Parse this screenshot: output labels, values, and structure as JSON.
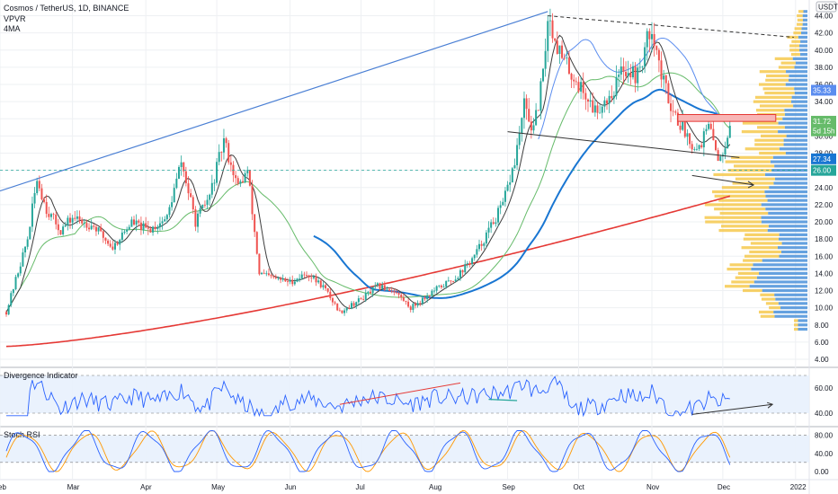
{
  "header": {
    "symbol": "Cosmos / TetherUS, 1D, BINANCE",
    "indicator1": "VPVR",
    "indicator2": "4MA"
  },
  "currency_badge": "USDT",
  "colors": {
    "up": "#26a69a",
    "down": "#ef5350",
    "ma_short": "#3d3d3d",
    "ma_green": "#66bb6a",
    "ma_blue_thin": "#5b8def",
    "ma_blue": "#1976d2",
    "ma_red": "#e53935",
    "trend": "#4a7fd4",
    "vp_up": "#4a90d9",
    "vp_down": "#f5c542",
    "grid": "#eef0f3"
  },
  "chart_data": [
    {
      "type": "candlestick",
      "title": "Cosmos / TetherUS, 1D, BINANCE",
      "xlabel": "",
      "ylabel": "USDT",
      "x_ticks": [
        "Feb",
        "Mar",
        "Apr",
        "May",
        "Jun",
        "Jul",
        "Aug",
        "Sep",
        "Oct",
        "Nov",
        "Dec",
        "2022"
      ],
      "ylim": [
        4,
        45
      ],
      "y_ticks": [
        "44.00",
        "42.00",
        "40.00",
        "38.00",
        "36.00",
        "34.00",
        "32.00",
        "30.00",
        "28.00",
        "26.00",
        "24.00",
        "22.00",
        "20.00",
        "18.00",
        "16.00",
        "14.00",
        "12.00",
        "10.00",
        "8.00",
        "6.00",
        "4.00"
      ],
      "price_tags": [
        {
          "label": "35.33",
          "value": 35.33,
          "color": "#5b8def"
        },
        {
          "label": "31.72",
          "value": 31.72,
          "color": "#66bb6a"
        },
        {
          "label": "5d 15h",
          "value": 30.6,
          "color": "#66bb6a"
        },
        {
          "label": "27.34",
          "value": 27.34,
          "color": "#1976d2"
        },
        {
          "label": "26.00",
          "value": 26.0,
          "color": "#26a69a"
        }
      ],
      "close_path": [
        [
          "Feb-01",
          9.5
        ],
        [
          "Feb-10",
          18.0
        ],
        [
          "Feb-14",
          25.0
        ],
        [
          "Feb-18",
          21.5
        ],
        [
          "Feb-24",
          19.0
        ],
        [
          "Mar-01",
          20.5
        ],
        [
          "Mar-10",
          19.5
        ],
        [
          "Mar-18",
          17.0
        ],
        [
          "Mar-26",
          20.0
        ],
        [
          "Apr-02",
          19.0
        ],
        [
          "Apr-10",
          20.5
        ],
        [
          "Apr-16",
          27.0
        ],
        [
          "Apr-22",
          20.0
        ],
        [
          "Apr-28",
          23.0
        ],
        [
          "May-04",
          29.5
        ],
        [
          "May-10",
          24.0
        ],
        [
          "May-14",
          26.0
        ],
        [
          "May-19",
          14.0
        ],
        [
          "May-24",
          13.5
        ],
        [
          "Jun-01",
          13.0
        ],
        [
          "Jun-08",
          14.0
        ],
        [
          "Jun-15",
          12.5
        ],
        [
          "Jun-22",
          9.5
        ],
        [
          "Jul-01",
          11.0
        ],
        [
          "Jul-08",
          12.5
        ],
        [
          "Jul-15",
          12.0
        ],
        [
          "Jul-22",
          10.0
        ],
        [
          "Aug-01",
          12.0
        ],
        [
          "Aug-10",
          13.5
        ],
        [
          "Aug-18",
          16.0
        ],
        [
          "Aug-24",
          19.0
        ],
        [
          "Aug-30",
          22.0
        ],
        [
          "Sep-04",
          27.0
        ],
        [
          "Sep-08",
          33.5
        ],
        [
          "Sep-12",
          30.5
        ],
        [
          "Sep-16",
          37.0
        ],
        [
          "Sep-18",
          44.0
        ],
        [
          "Sep-24",
          39.0
        ],
        [
          "Oct-01",
          36.0
        ],
        [
          "Oct-08",
          33.0
        ],
        [
          "Oct-15",
          35.0
        ],
        [
          "Oct-20",
          38.0
        ],
        [
          "Oct-26",
          37.0
        ],
        [
          "Nov-01",
          43.0
        ],
        [
          "Nov-05",
          37.0
        ],
        [
          "Nov-10",
          33.0
        ],
        [
          "Nov-15",
          30.5
        ],
        [
          "Nov-20",
          28.5
        ],
        [
          "Nov-25",
          31.0
        ],
        [
          "Nov-30",
          27.0
        ],
        [
          "Dec-04",
          31.72
        ]
      ],
      "trendline": {
        "from": [
          "Jan-30",
          25.0
        ],
        "to": [
          "Sep-18",
          44.5
        ]
      },
      "lower_trendline": {
        "from": [
          "Sep-01",
          30.5
        ],
        "to": [
          "Dec-08",
          27.5
        ]
      },
      "upper_dashed_line": {
        "from": [
          "Sep-18",
          44.0
        ],
        "to": [
          "Dec-31",
          41.5
        ]
      },
      "horizontal_level": 26.0,
      "resistance_box": {
        "from": "Nov-12",
        "to": "Dec-31",
        "low": 31.7,
        "high": 32.5
      },
      "ma_blue_thin_end": 35.33,
      "ma_blue_end": 27.34,
      "ma_red_end": 23.0
    },
    {
      "type": "line",
      "title": "Divergence Indicator",
      "ylim": [
        30,
        75
      ],
      "y_ticks": [
        "60.00",
        "40.00"
      ],
      "band": [
        40,
        70
      ]
    },
    {
      "type": "line",
      "title": "Stoch RSI",
      "ylim": [
        -10,
        95
      ],
      "y_ticks": [
        "80.00",
        "40.00",
        "0.00"
      ],
      "band": [
        20,
        80
      ]
    }
  ]
}
